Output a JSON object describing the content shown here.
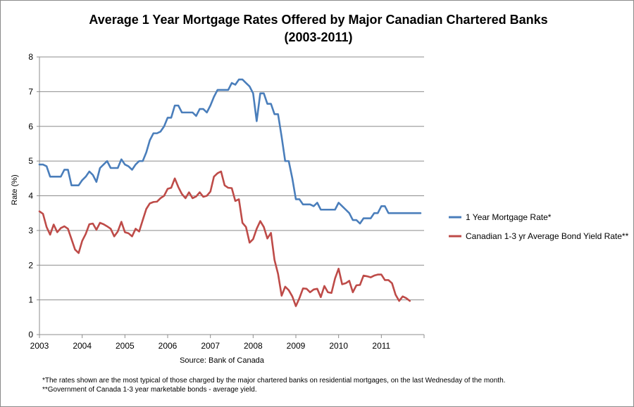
{
  "chart_data": {
    "type": "line",
    "title": "Average 1 Year Mortgage Rates Offered by Major Canadian Chartered Banks",
    "subtitle": "(2003-2011)",
    "xlabel": "Source: Bank of Canada",
    "ylabel": "Rate (%)",
    "ylim": [
      0,
      8
    ],
    "yticks": [
      "0",
      "1",
      "2",
      "3",
      "4",
      "5",
      "6",
      "7",
      "8"
    ],
    "xlim": [
      2003,
      2012
    ],
    "xticks": [
      "2003",
      "2004",
      "2005",
      "2006",
      "2007",
      "2008",
      "2009",
      "2010",
      "2011"
    ],
    "grid": true,
    "legend_position": "right",
    "series": [
      {
        "name": "1 Year Mortgage Rate*",
        "color": "#4a7ebb",
        "points": [
          [
            2003.0,
            4.9
          ],
          [
            2003.083,
            4.9
          ],
          [
            2003.167,
            4.85
          ],
          [
            2003.25,
            4.55
          ],
          [
            2003.333,
            4.55
          ],
          [
            2003.417,
            4.55
          ],
          [
            2003.5,
            4.55
          ],
          [
            2003.583,
            4.75
          ],
          [
            2003.667,
            4.75
          ],
          [
            2003.75,
            4.3
          ],
          [
            2003.833,
            4.3
          ],
          [
            2003.917,
            4.3
          ],
          [
            2004.0,
            4.45
          ],
          [
            2004.083,
            4.55
          ],
          [
            2004.167,
            4.7
          ],
          [
            2004.25,
            4.6
          ],
          [
            2004.333,
            4.4
          ],
          [
            2004.417,
            4.8
          ],
          [
            2004.5,
            4.9
          ],
          [
            2004.583,
            5.0
          ],
          [
            2004.667,
            4.8
          ],
          [
            2004.75,
            4.8
          ],
          [
            2004.833,
            4.8
          ],
          [
            2004.917,
            5.05
          ],
          [
            2005.0,
            4.9
          ],
          [
            2005.083,
            4.85
          ],
          [
            2005.167,
            4.75
          ],
          [
            2005.25,
            4.9
          ],
          [
            2005.333,
            5.0
          ],
          [
            2005.417,
            5.0
          ],
          [
            2005.5,
            5.25
          ],
          [
            2005.583,
            5.6
          ],
          [
            2005.667,
            5.8
          ],
          [
            2005.75,
            5.8
          ],
          [
            2005.833,
            5.85
          ],
          [
            2005.917,
            6.0
          ],
          [
            2006.0,
            6.25
          ],
          [
            2006.083,
            6.25
          ],
          [
            2006.167,
            6.6
          ],
          [
            2006.25,
            6.6
          ],
          [
            2006.333,
            6.4
          ],
          [
            2006.417,
            6.4
          ],
          [
            2006.5,
            6.4
          ],
          [
            2006.583,
            6.4
          ],
          [
            2006.667,
            6.3
          ],
          [
            2006.75,
            6.5
          ],
          [
            2006.833,
            6.5
          ],
          [
            2006.917,
            6.4
          ],
          [
            2007.0,
            6.6
          ],
          [
            2007.083,
            6.85
          ],
          [
            2007.167,
            7.05
          ],
          [
            2007.25,
            7.05
          ],
          [
            2007.333,
            7.05
          ],
          [
            2007.417,
            7.05
          ],
          [
            2007.5,
            7.25
          ],
          [
            2007.583,
            7.2
          ],
          [
            2007.667,
            7.35
          ],
          [
            2007.75,
            7.35
          ],
          [
            2007.833,
            7.25
          ],
          [
            2007.917,
            7.15
          ],
          [
            2008.0,
            6.95
          ],
          [
            2008.083,
            6.15
          ],
          [
            2008.167,
            6.95
          ],
          [
            2008.25,
            6.95
          ],
          [
            2008.333,
            6.65
          ],
          [
            2008.417,
            6.65
          ],
          [
            2008.5,
            6.35
          ],
          [
            2008.583,
            6.35
          ],
          [
            2008.667,
            5.7
          ],
          [
            2008.75,
            5.0
          ],
          [
            2008.833,
            5.0
          ],
          [
            2008.917,
            4.5
          ],
          [
            2009.0,
            3.9
          ],
          [
            2009.083,
            3.9
          ],
          [
            2009.167,
            3.75
          ],
          [
            2009.25,
            3.75
          ],
          [
            2009.333,
            3.75
          ],
          [
            2009.417,
            3.7
          ],
          [
            2009.5,
            3.8
          ],
          [
            2009.583,
            3.6
          ],
          [
            2009.667,
            3.6
          ],
          [
            2009.75,
            3.6
          ],
          [
            2009.833,
            3.6
          ],
          [
            2009.917,
            3.6
          ],
          [
            2010.0,
            3.8
          ],
          [
            2010.083,
            3.7
          ],
          [
            2010.167,
            3.6
          ],
          [
            2010.25,
            3.5
          ],
          [
            2010.333,
            3.3
          ],
          [
            2010.417,
            3.3
          ],
          [
            2010.5,
            3.2
          ],
          [
            2010.583,
            3.35
          ],
          [
            2010.667,
            3.35
          ],
          [
            2010.75,
            3.35
          ],
          [
            2010.833,
            3.5
          ],
          [
            2010.917,
            3.5
          ],
          [
            2011.0,
            3.7
          ],
          [
            2011.083,
            3.7
          ],
          [
            2011.167,
            3.5
          ],
          [
            2011.25,
            3.5
          ],
          [
            2011.333,
            3.5
          ],
          [
            2011.417,
            3.5
          ],
          [
            2011.5,
            3.5
          ],
          [
            2011.583,
            3.5
          ],
          [
            2011.667,
            3.5
          ],
          [
            2011.75,
            3.5
          ],
          [
            2011.833,
            3.5
          ],
          [
            2011.917,
            3.5
          ]
        ]
      },
      {
        "name": "Canadian 1-3 yr Average Bond Yield Rate**",
        "color": "#be4b48",
        "points": [
          [
            2003.0,
            3.55
          ],
          [
            2003.083,
            3.48
          ],
          [
            2003.167,
            3.1
          ],
          [
            2003.25,
            2.88
          ],
          [
            2003.333,
            3.17
          ],
          [
            2003.417,
            2.95
          ],
          [
            2003.5,
            3.07
          ],
          [
            2003.583,
            3.12
          ],
          [
            2003.667,
            3.05
          ],
          [
            2003.75,
            2.75
          ],
          [
            2003.833,
            2.45
          ],
          [
            2003.917,
            2.35
          ],
          [
            2004.0,
            2.7
          ],
          [
            2004.083,
            2.9
          ],
          [
            2004.167,
            3.18
          ],
          [
            2004.25,
            3.2
          ],
          [
            2004.333,
            3.02
          ],
          [
            2004.417,
            3.22
          ],
          [
            2004.5,
            3.18
          ],
          [
            2004.583,
            3.12
          ],
          [
            2004.667,
            3.05
          ],
          [
            2004.75,
            2.83
          ],
          [
            2004.833,
            2.97
          ],
          [
            2004.917,
            3.25
          ],
          [
            2005.0,
            2.95
          ],
          [
            2005.083,
            2.92
          ],
          [
            2005.167,
            2.83
          ],
          [
            2005.25,
            3.05
          ],
          [
            2005.333,
            2.97
          ],
          [
            2005.417,
            3.3
          ],
          [
            2005.5,
            3.62
          ],
          [
            2005.583,
            3.78
          ],
          [
            2005.667,
            3.82
          ],
          [
            2005.75,
            3.83
          ],
          [
            2005.833,
            3.93
          ],
          [
            2005.917,
            4.0
          ],
          [
            2006.0,
            4.2
          ],
          [
            2006.083,
            4.23
          ],
          [
            2006.167,
            4.5
          ],
          [
            2006.25,
            4.25
          ],
          [
            2006.333,
            4.05
          ],
          [
            2006.417,
            3.93
          ],
          [
            2006.5,
            4.1
          ],
          [
            2006.583,
            3.93
          ],
          [
            2006.667,
            3.98
          ],
          [
            2006.75,
            4.1
          ],
          [
            2006.833,
            3.97
          ],
          [
            2006.917,
            4.0
          ],
          [
            2007.0,
            4.12
          ],
          [
            2007.083,
            4.55
          ],
          [
            2007.167,
            4.65
          ],
          [
            2007.25,
            4.7
          ],
          [
            2007.333,
            4.3
          ],
          [
            2007.417,
            4.23
          ],
          [
            2007.5,
            4.22
          ],
          [
            2007.583,
            3.85
          ],
          [
            2007.667,
            3.9
          ],
          [
            2007.75,
            3.22
          ],
          [
            2007.833,
            3.1
          ],
          [
            2007.917,
            2.65
          ],
          [
            2008.0,
            2.75
          ],
          [
            2008.083,
            3.05
          ],
          [
            2008.167,
            3.27
          ],
          [
            2008.25,
            3.1
          ],
          [
            2008.333,
            2.77
          ],
          [
            2008.417,
            2.93
          ],
          [
            2008.5,
            2.15
          ],
          [
            2008.583,
            1.75
          ],
          [
            2008.667,
            1.12
          ],
          [
            2008.75,
            1.38
          ],
          [
            2008.833,
            1.28
          ],
          [
            2008.917,
            1.1
          ],
          [
            2009.0,
            0.82
          ],
          [
            2009.083,
            1.05
          ],
          [
            2009.167,
            1.33
          ],
          [
            2009.25,
            1.32
          ],
          [
            2009.333,
            1.22
          ],
          [
            2009.417,
            1.3
          ],
          [
            2009.5,
            1.32
          ],
          [
            2009.583,
            1.08
          ],
          [
            2009.667,
            1.4
          ],
          [
            2009.75,
            1.22
          ],
          [
            2009.833,
            1.2
          ],
          [
            2009.917,
            1.62
          ],
          [
            2010.0,
            1.9
          ],
          [
            2010.083,
            1.45
          ],
          [
            2010.167,
            1.48
          ],
          [
            2010.25,
            1.55
          ],
          [
            2010.333,
            1.22
          ],
          [
            2010.417,
            1.42
          ],
          [
            2010.5,
            1.43
          ],
          [
            2010.583,
            1.7
          ],
          [
            2010.667,
            1.68
          ],
          [
            2010.75,
            1.65
          ],
          [
            2010.833,
            1.7
          ],
          [
            2010.917,
            1.73
          ],
          [
            2011.0,
            1.73
          ],
          [
            2011.083,
            1.57
          ],
          [
            2011.167,
            1.57
          ],
          [
            2011.25,
            1.48
          ],
          [
            2011.333,
            1.15
          ],
          [
            2011.417,
            0.97
          ],
          [
            2011.5,
            1.1
          ],
          [
            2011.583,
            1.05
          ],
          [
            2011.667,
            0.97
          ]
        ]
      }
    ],
    "footnotes": [
      "*The rates shown are the most typical of those charged by the major chartered banks on residential mortgages, on the last Wednesday of the month.",
      "**Government of Canada 1-3 year marketable bonds - average yield."
    ]
  }
}
